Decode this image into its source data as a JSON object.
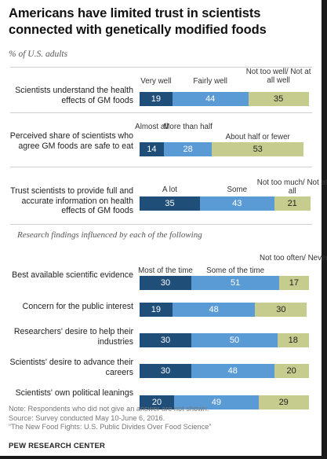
{
  "title": "Americans have limited trust in scientists connected with genetically modified foods",
  "subtitle": "% of U.S. adults",
  "section_heading": "Research findings influenced by each of the following",
  "notes": [
    "Note: Respondents who did not give an answer are not shown.",
    "Source: Survey conducted May 10-June 6, 2016.",
    "“The New Food Fights: U.S. Public Divides Over Food Science”"
  ],
  "brand": "PEW RESEARCH CENTER",
  "colors": {
    "dark": "#1f4e79",
    "mid": "#5b9bd5",
    "light": "#c5cc8e"
  },
  "chart_data": {
    "type": "bar",
    "stacked": true,
    "orientation": "horizontal",
    "groups": [
      {
        "headers": [
          "Very well",
          "Fairly well",
          "Not too well/ Not at all well"
        ],
        "rows": [
          {
            "label": "Scientists understand the health effects of GM foods",
            "values": [
              19,
              44,
              35
            ]
          }
        ]
      },
      {
        "headers": [
          "Almost all",
          "More than half",
          "About half or fewer"
        ],
        "rows": [
          {
            "label": "Perceived share of scientists who agree GM foods are safe to eat",
            "values": [
              14,
              28,
              53
            ]
          }
        ]
      },
      {
        "headers": [
          "A lot",
          "Some",
          "Not too much/ Not at all"
        ],
        "rows": [
          {
            "label": "Trust scientists to provide full and accurate information on health effects of GM foods",
            "values": [
              35,
              43,
              21
            ]
          }
        ]
      },
      {
        "headers": [
          "Most of the time",
          "Some of the time",
          "Not too often/ Never"
        ],
        "rows": [
          {
            "label": "Best available scientific evidence",
            "values": [
              30,
              51,
              17
            ]
          },
          {
            "label": "Concern for the public interest",
            "values": [
              19,
              48,
              30
            ]
          },
          {
            "label": "Researchers' desire to help their industries",
            "values": [
              30,
              50,
              18
            ]
          },
          {
            "label": "Scientists' desire to advance their careers",
            "values": [
              30,
              48,
              20
            ]
          },
          {
            "label": "Scientists' own political leanings",
            "values": [
              20,
              49,
              29
            ]
          }
        ]
      }
    ]
  }
}
